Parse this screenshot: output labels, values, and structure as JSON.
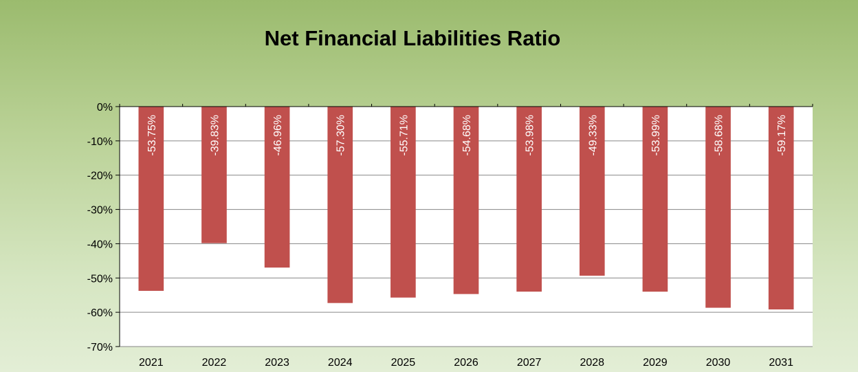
{
  "chart_data": {
    "type": "bar",
    "title": "Net Financial Liabilities Ratio",
    "xlabel": "",
    "ylabel": "",
    "categories": [
      "2021",
      "2022",
      "2023",
      "2024",
      "2025",
      "2026",
      "2027",
      "2028",
      "2029",
      "2030",
      "2031"
    ],
    "values": [
      -53.75,
      -39.83,
      -46.96,
      -57.3,
      -55.71,
      -54.68,
      -53.98,
      -49.33,
      -53.99,
      -58.68,
      -59.17
    ],
    "data_labels": [
      "-53.75%",
      "-39.83%",
      "-46.96%",
      "-57.30%",
      "-55.71%",
      "-54.68%",
      "-53.98%",
      "-49.33%",
      "-53.99%",
      "-58.68%",
      "-59.17%"
    ],
    "ylim": [
      -70,
      0
    ],
    "yticks": [
      0,
      -10,
      -20,
      -30,
      -40,
      -50,
      -60,
      -70
    ],
    "ytick_labels": [
      "0%",
      "-10%",
      "-20%",
      "-30%",
      "-40%",
      "-50%",
      "-60%",
      "-70%"
    ],
    "grid": true,
    "legend": "none",
    "colors": {
      "bar": "#c0504d",
      "background_top": "#9bbb6e",
      "background_bottom": "#e3eed6",
      "plot_area": "#ffffff"
    }
  }
}
